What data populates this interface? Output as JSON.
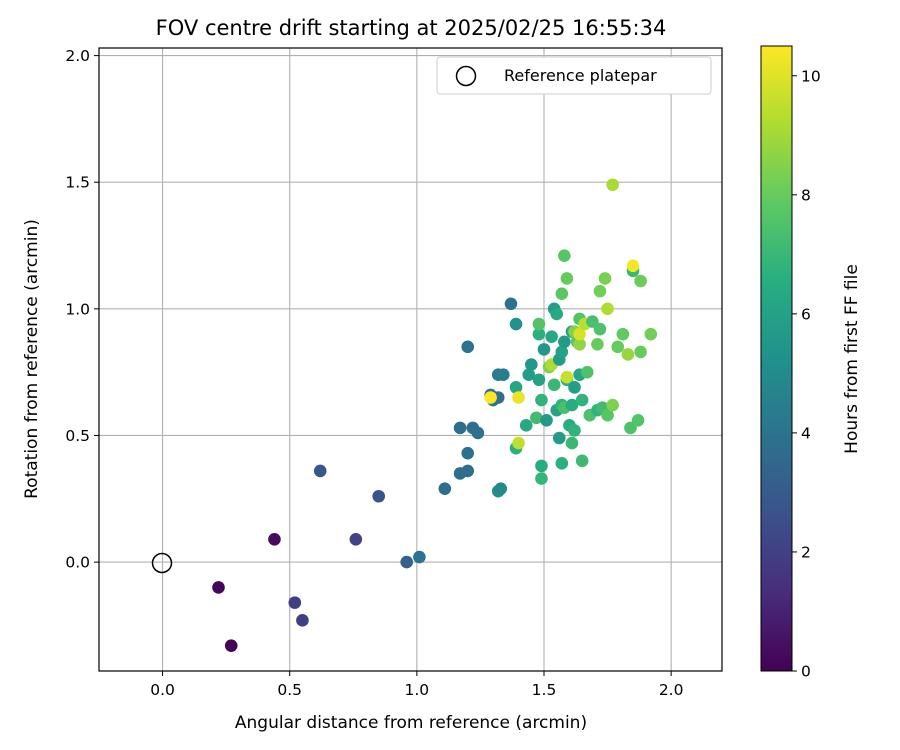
{
  "chart_data": {
    "type": "scatter",
    "title": "FOV centre drift starting at 2025/02/25 16:55:34",
    "xlabel": "Angular distance from reference (arcmin)",
    "ylabel": "Rotation from reference (arcmin)",
    "xlim": [
      -0.25,
      2.2
    ],
    "ylim": [
      -0.43,
      2.03
    ],
    "xticks": [
      0.0,
      0.5,
      1.0,
      1.5,
      2.0
    ],
    "yticks": [
      0.0,
      0.5,
      1.0,
      1.5,
      2.0
    ],
    "xtick_labels": [
      "0.0",
      "0.5",
      "1.0",
      "1.5",
      "2.0"
    ],
    "ytick_labels": [
      "0.0",
      "0.5",
      "1.0",
      "1.5",
      "2.0"
    ],
    "grid": true,
    "colormap": "viridis",
    "colorbar": {
      "label": "Hours from first FF file",
      "range": [
        0,
        10.5
      ],
      "ticks": [
        0,
        2,
        4,
        6,
        8,
        10
      ],
      "tick_labels": [
        "0",
        "2",
        "4",
        "6",
        "8",
        "10"
      ]
    },
    "legend": {
      "placement": "top-right",
      "entries": [
        {
          "label": "Reference platepar",
          "marker": "open-circle"
        }
      ]
    },
    "reference_point": {
      "x": 0.0,
      "y": 0.0
    },
    "points": [
      [
        0.22,
        -0.1,
        0.2
      ],
      [
        0.27,
        -0.33,
        0.1
      ],
      [
        0.44,
        0.09,
        0.3
      ],
      [
        0.52,
        -0.16,
        1.9
      ],
      [
        0.55,
        -0.23,
        2.0
      ],
      [
        0.62,
        0.36,
        2.8
      ],
      [
        0.76,
        0.09,
        2.1
      ],
      [
        0.85,
        0.26,
        2.7
      ],
      [
        0.96,
        0.0,
        3.2
      ],
      [
        1.01,
        0.02,
        4.0
      ],
      [
        1.11,
        0.29,
        3.8
      ],
      [
        1.17,
        0.53,
        3.7
      ],
      [
        1.17,
        0.35,
        3.7
      ],
      [
        1.2,
        0.36,
        3.8
      ],
      [
        1.2,
        0.43,
        3.9
      ],
      [
        1.2,
        0.85,
        4.0
      ],
      [
        1.22,
        0.53,
        3.8
      ],
      [
        1.24,
        0.51,
        3.9
      ],
      [
        1.29,
        0.66,
        3.9
      ],
      [
        1.3,
        0.64,
        4.0
      ],
      [
        1.32,
        0.65,
        3.8
      ],
      [
        1.32,
        0.74,
        4.3
      ],
      [
        1.34,
        0.74,
        4.5
      ],
      [
        1.32,
        0.28,
        5.2
      ],
      [
        1.33,
        0.29,
        5.0
      ],
      [
        1.37,
        1.02,
        3.9
      ],
      [
        1.39,
        0.94,
        5.3
      ],
      [
        1.39,
        0.69,
        6.2
      ],
      [
        1.39,
        0.45,
        6.6
      ],
      [
        1.29,
        0.65,
        10.5
      ],
      [
        1.4,
        0.65,
        10.2
      ],
      [
        1.4,
        0.47,
        9.5
      ],
      [
        1.43,
        0.54,
        6.3
      ],
      [
        1.44,
        0.74,
        5.8
      ],
      [
        1.45,
        0.78,
        5.5
      ],
      [
        1.47,
        0.57,
        7.2
      ],
      [
        1.48,
        0.72,
        6.0
      ],
      [
        1.48,
        0.9,
        6.6
      ],
      [
        1.48,
        0.94,
        7.6
      ],
      [
        1.49,
        0.64,
        6.8
      ],
      [
        1.49,
        0.38,
        6.5
      ],
      [
        1.49,
        0.33,
        6.9
      ],
      [
        1.5,
        0.84,
        5.5
      ],
      [
        1.51,
        0.56,
        5.7
      ],
      [
        1.52,
        0.77,
        8.4
      ],
      [
        1.53,
        0.78,
        9.2
      ],
      [
        1.53,
        0.89,
        6.3
      ],
      [
        1.54,
        1.0,
        5.8
      ],
      [
        1.54,
        0.7,
        7.0
      ],
      [
        1.55,
        0.98,
        6.4
      ],
      [
        1.55,
        0.6,
        6.1
      ],
      [
        1.56,
        0.49,
        5.7
      ],
      [
        1.56,
        0.8,
        5.8
      ],
      [
        1.57,
        0.83,
        6.0
      ],
      [
        1.57,
        0.39,
        6.6
      ],
      [
        1.57,
        0.62,
        6.8
      ],
      [
        1.57,
        1.06,
        7.8
      ],
      [
        1.58,
        0.87,
        5.6
      ],
      [
        1.58,
        0.61,
        7.4
      ],
      [
        1.58,
        1.21,
        7.7
      ],
      [
        1.59,
        0.72,
        6.7
      ],
      [
        1.59,
        0.73,
        9.6
      ],
      [
        1.59,
        1.12,
        8.0
      ],
      [
        1.6,
        0.54,
        6.5
      ],
      [
        1.61,
        0.47,
        7.0
      ],
      [
        1.61,
        0.62,
        6.5
      ],
      [
        1.61,
        0.91,
        6.0
      ],
      [
        1.62,
        0.52,
        6.8
      ],
      [
        1.62,
        0.69,
        5.9
      ],
      [
        1.62,
        0.91,
        8.5
      ],
      [
        1.63,
        0.87,
        7.8
      ],
      [
        1.64,
        0.86,
        8.7
      ],
      [
        1.64,
        0.74,
        6.2
      ],
      [
        1.64,
        0.96,
        7.6
      ],
      [
        1.64,
        0.9,
        9.9
      ],
      [
        1.65,
        0.4,
        7.1
      ],
      [
        1.65,
        0.64,
        6.8
      ],
      [
        1.66,
        0.94,
        9.4
      ],
      [
        1.67,
        0.75,
        7.5
      ],
      [
        1.68,
        0.58,
        7.5
      ],
      [
        1.69,
        0.95,
        7.4
      ],
      [
        1.71,
        0.6,
        6.8
      ],
      [
        1.71,
        0.86,
        8.0
      ],
      [
        1.72,
        0.92,
        7.5
      ],
      [
        1.72,
        1.07,
        8.2
      ],
      [
        1.73,
        0.61,
        7.2
      ],
      [
        1.74,
        1.12,
        8.3
      ],
      [
        1.75,
        1.0,
        9.2
      ],
      [
        1.75,
        0.58,
        7.7
      ],
      [
        1.77,
        0.62,
        8.4
      ],
      [
        1.77,
        1.49,
        9.1
      ],
      [
        1.79,
        0.85,
        8.0
      ],
      [
        1.81,
        0.9,
        7.9
      ],
      [
        1.83,
        0.82,
        8.8
      ],
      [
        1.84,
        0.53,
        7.5
      ],
      [
        1.85,
        1.15,
        7.0
      ],
      [
        1.85,
        1.17,
        10.4
      ],
      [
        1.87,
        0.56,
        7.6
      ],
      [
        1.88,
        1.11,
        8.1
      ],
      [
        1.88,
        0.83,
        8.0
      ],
      [
        1.92,
        0.9,
        8.2
      ]
    ]
  }
}
